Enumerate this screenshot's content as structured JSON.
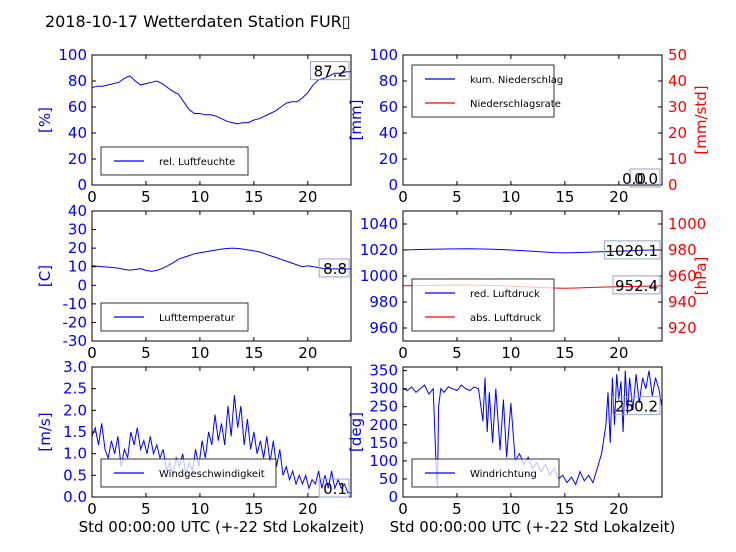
{
  "title": "2018-10-17 Wetterdaten Station FUR▯",
  "colors": {
    "primary": "#0000ff",
    "secondary": "#ff0000",
    "axis": "#000000"
  },
  "chart_data": [
    {
      "id": "humidity",
      "type": "line",
      "ylabel": "[%]",
      "xlim": [
        0,
        24
      ],
      "ylim": [
        0,
        100
      ],
      "xticks": [
        0,
        5,
        10,
        15,
        20
      ],
      "yticks": [
        0,
        20,
        40,
        60,
        80,
        100
      ],
      "last_value_label": "87.2",
      "legend": {
        "placement": "lower-left",
        "entries": [
          {
            "label": "rel. Luftfeuchte",
            "color": "#0000ff"
          }
        ]
      },
      "series": [
        {
          "name": "rel. Luftfeuchte",
          "color": "#0000ff",
          "x": [
            0,
            0.5,
            1,
            1.5,
            2,
            2.5,
            3,
            3.5,
            4,
            4.5,
            5,
            5.5,
            6,
            6.5,
            7,
            7.5,
            8,
            8.5,
            9,
            9.5,
            10,
            10.5,
            11,
            11.5,
            12,
            12.5,
            13,
            13.5,
            14,
            14.5,
            15,
            15.5,
            16,
            16.5,
            17,
            17.5,
            18,
            18.5,
            19,
            19.5,
            20,
            20.5,
            21,
            21.5,
            22,
            22.5,
            23,
            23.5,
            24
          ],
          "y": [
            75,
            76,
            76,
            77,
            78,
            79,
            82,
            84,
            80,
            77,
            78,
            79,
            80,
            78,
            75,
            72,
            70,
            64,
            58,
            55,
            55,
            54,
            54,
            53,
            51,
            49,
            48,
            47,
            48,
            48,
            50,
            51,
            53,
            55,
            57,
            60,
            63,
            64,
            64,
            67,
            71,
            77,
            81,
            82,
            84,
            86,
            86,
            87,
            87.2
          ]
        }
      ]
    },
    {
      "id": "precip",
      "type": "line",
      "ylabel": "[mm]",
      "ylabel_right": "[mm/std]",
      "xlim": [
        0,
        24
      ],
      "ylim": [
        0,
        100
      ],
      "ylim_right": [
        0,
        50
      ],
      "xticks": [
        0,
        5,
        10,
        15,
        20
      ],
      "yticks": [
        0,
        20,
        40,
        60,
        80,
        100
      ],
      "yticks_right": [
        0,
        10,
        20,
        30,
        40,
        50
      ],
      "last_value_label": "0.0",
      "last_value_label_overlap": "0.0",
      "legend": {
        "placement": "upper-left",
        "entries": [
          {
            "label": "kum. Niederschlag",
            "color": "#0000ff"
          },
          {
            "label": "Niederschlagsrate",
            "color": "#ff0000"
          }
        ]
      },
      "series": [
        {
          "name": "kum. Niederschlag",
          "color": "#0000ff",
          "axis": "left",
          "x": [
            0,
            24
          ],
          "y": [
            0,
            0
          ]
        },
        {
          "name": "Niederschlagsrate",
          "color": "#ff0000",
          "axis": "right",
          "x": [
            0,
            24
          ],
          "y": [
            0,
            0
          ]
        }
      ]
    },
    {
      "id": "temperature",
      "type": "line",
      "ylabel": "[C]",
      "xlim": [
        0,
        24
      ],
      "ylim": [
        -30,
        40
      ],
      "xticks": [
        0,
        5,
        10,
        15,
        20
      ],
      "yticks": [
        -30,
        -20,
        -10,
        0,
        10,
        20,
        30,
        40
      ],
      "last_value_label": "8.8",
      "legend": {
        "placement": "lower-left",
        "entries": [
          {
            "label": "Lufttemperatur",
            "color": "#0000ff"
          }
        ]
      },
      "series": [
        {
          "name": "Lufttemperatur",
          "color": "#0000ff",
          "x": [
            0,
            0.5,
            1,
            1.5,
            2,
            2.5,
            3,
            3.5,
            4,
            4.5,
            5,
            5.5,
            6,
            6.5,
            7,
            7.5,
            8,
            8.5,
            9,
            9.5,
            10,
            10.5,
            11,
            11.5,
            12,
            12.5,
            13,
            13.5,
            14,
            14.5,
            15,
            15.5,
            16,
            16.5,
            17,
            17.5,
            18,
            18.5,
            19,
            19.5,
            20,
            20.5,
            21,
            21.5,
            22,
            22.5,
            23,
            23.5,
            24
          ],
          "y": [
            10.5,
            10.3,
            10,
            9.8,
            9.5,
            9.2,
            8.5,
            8.2,
            8.5,
            9,
            8,
            7.5,
            8,
            9,
            10.5,
            12,
            14,
            15,
            16,
            17,
            17.5,
            18,
            18.5,
            19,
            19.5,
            19.8,
            20,
            19.8,
            19.5,
            19,
            18.5,
            18,
            17,
            16,
            15,
            14,
            13,
            12,
            11,
            10,
            10.5,
            10,
            9.5,
            9,
            8.8,
            8.8,
            8.8,
            8.8,
            8.8
          ]
        }
      ]
    },
    {
      "id": "pressure",
      "type": "line",
      "ylabel_right": "[hPa]",
      "xlim": [
        0,
        24
      ],
      "ylim": [
        950,
        1050
      ],
      "ylim_right": [
        910,
        1010
      ],
      "xticks": [
        0,
        5,
        10,
        15,
        20
      ],
      "yticks": [
        960,
        980,
        1000,
        1020,
        1040
      ],
      "yticks_right": [
        920,
        940,
        960,
        980,
        1000
      ],
      "last_value_label": "1020.1",
      "last_value_label_2": "952.4",
      "legend": {
        "placement": "lower-left",
        "entries": [
          {
            "label": "red. Luftdruck",
            "color": "#0000ff"
          },
          {
            "label": "abs. Luftdruck",
            "color": "#ff0000"
          }
        ]
      },
      "series": [
        {
          "name": "red. Luftdruck",
          "color": "#0000ff",
          "axis": "left",
          "x": [
            0,
            2,
            4,
            6,
            8,
            10,
            12,
            14,
            15,
            16,
            18,
            20,
            22,
            24
          ],
          "y": [
            1020,
            1020.5,
            1020.8,
            1021,
            1020.7,
            1020,
            1019,
            1018,
            1017.8,
            1018,
            1018.5,
            1019,
            1019.8,
            1020.1
          ]
        },
        {
          "name": "abs. Luftdruck",
          "color": "#ff0000",
          "axis": "right",
          "x": [
            0,
            2,
            4,
            6,
            8,
            10,
            12,
            14,
            15,
            16,
            18,
            20,
            22,
            24
          ],
          "y": [
            952.5,
            952.7,
            953,
            953.1,
            952.8,
            952.2,
            951.5,
            950.8,
            950.6,
            950.8,
            951.3,
            951.7,
            952.1,
            952.4
          ]
        }
      ]
    },
    {
      "id": "windspeed",
      "type": "line",
      "ylabel": "[m/s]",
      "xlabel": "Std 00:00:00 UTC (+-22 Std Lokalzeit)",
      "xlim": [
        0,
        24
      ],
      "ylim": [
        0,
        3.0
      ],
      "xticks": [
        0,
        5,
        10,
        15,
        20
      ],
      "yticks": [
        0.0,
        0.5,
        1.0,
        1.5,
        2.0,
        2.5,
        3.0
      ],
      "ytick_labels": [
        "0.0",
        "0.5",
        "1.0",
        "1.5",
        "2.0",
        "2.5",
        "3.0"
      ],
      "last_value_label": "0.1",
      "legend": {
        "placement": "lower-left",
        "entries": [
          {
            "label": "Windgeschwindigkeit",
            "color": "#0000ff"
          }
        ]
      },
      "series": [
        {
          "name": "Windgeschwindigkeit",
          "color": "#0000ff",
          "x": [
            0,
            0.3,
            0.6,
            0.9,
            1.2,
            1.5,
            1.8,
            2.1,
            2.4,
            2.7,
            3,
            3.3,
            3.6,
            3.9,
            4.2,
            4.5,
            4.8,
            5.1,
            5.4,
            5.7,
            6,
            6.3,
            6.6,
            6.9,
            7.2,
            7.5,
            7.8,
            8.1,
            8.4,
            8.7,
            9,
            9.3,
            9.6,
            9.9,
            10.2,
            10.5,
            10.8,
            11.1,
            11.4,
            11.7,
            12,
            12.3,
            12.6,
            12.9,
            13.2,
            13.5,
            13.8,
            14.1,
            14.4,
            14.7,
            15,
            15.3,
            15.6,
            15.9,
            16.2,
            16.5,
            16.8,
            17.1,
            17.4,
            17.7,
            18,
            18.3,
            18.6,
            18.9,
            19.2,
            19.5,
            19.8,
            20.1,
            20.4,
            20.7,
            21,
            21.3,
            21.6,
            21.9,
            22.2,
            22.5,
            22.8,
            23.1,
            23.4,
            23.7,
            24
          ],
          "y": [
            1.4,
            1.6,
            1.2,
            1.7,
            1.1,
            0.9,
            1.3,
            1.0,
            1.4,
            0.7,
            1.1,
            0.9,
            1.5,
            1.2,
            1.6,
            1.1,
            1.3,
            1.0,
            1.4,
            1.0,
            1.2,
            0.9,
            1.1,
            0.6,
            0.8,
            0.5,
            0.9,
            0.7,
            1.0,
            0.5,
            0.8,
            0.6,
            1.1,
            0.7,
            1.3,
            0.9,
            1.5,
            1.2,
            1.9,
            1.3,
            1.7,
            1.2,
            2.1,
            1.4,
            2.35,
            1.6,
            2.1,
            1.2,
            1.8,
            1.1,
            1.5,
            1.0,
            1.3,
            0.9,
            1.4,
            0.8,
            1.3,
            0.7,
            1.1,
            0.5,
            0.7,
            0.4,
            0.6,
            0.3,
            0.5,
            0.3,
            0.5,
            0.2,
            0.4,
            0.3,
            0.6,
            0.2,
            0.5,
            0.2,
            0.6,
            0.2,
            0.4,
            0.2,
            0.3,
            0.1,
            0.1
          ]
        }
      ]
    },
    {
      "id": "winddir",
      "type": "line",
      "ylabel": "[deg]",
      "xlabel": "Std 00:00:00 UTC (+-22 Std Lokalzeit)",
      "xlim": [
        0,
        24
      ],
      "ylim": [
        0,
        360
      ],
      "xticks": [
        0,
        5,
        10,
        15,
        20
      ],
      "yticks": [
        0,
        50,
        100,
        150,
        200,
        250,
        300,
        350
      ],
      "last_value_label": "250.2",
      "legend": {
        "placement": "lower-left",
        "entries": [
          {
            "label": "Windrichtung",
            "color": "#0000ff"
          }
        ]
      },
      "series": [
        {
          "name": "Windrichtung",
          "color": "#0000ff",
          "x": [
            0,
            0.4,
            0.8,
            1.2,
            1.6,
            2,
            2.4,
            2.8,
            3.1,
            3.2,
            3.3,
            3.5,
            3.8,
            4.2,
            4.6,
            5,
            5.4,
            5.8,
            6.2,
            6.6,
            7,
            7.4,
            7.6,
            7.8,
            8,
            8.3,
            8.6,
            9,
            9.3,
            9.6,
            10,
            10.4,
            10.8,
            11.2,
            11.6,
            12,
            12.4,
            12.8,
            13.2,
            13.6,
            14,
            14.4,
            14.8,
            15.2,
            15.6,
            16,
            16.4,
            16.8,
            17.2,
            17.6,
            18,
            18.4,
            18.8,
            19,
            19.2,
            19.4,
            19.6,
            19.8,
            20,
            20.2,
            20.4,
            20.6,
            20.8,
            21,
            21.3,
            21.6,
            21.9,
            22.2,
            22.5,
            22.8,
            23.1,
            23.4,
            23.7,
            24
          ],
          "y": [
            300,
            295,
            305,
            290,
            300,
            310,
            285,
            300,
            60,
            30,
            250,
            300,
            290,
            305,
            300,
            295,
            310,
            300,
            295,
            305,
            300,
            210,
            330,
            180,
            290,
            150,
            300,
            130,
            270,
            110,
            260,
            100,
            120,
            90,
            110,
            80,
            95,
            70,
            90,
            60,
            80,
            50,
            60,
            40,
            55,
            35,
            70,
            45,
            60,
            40,
            80,
            120,
            200,
            290,
            150,
            330,
            200,
            340,
            270,
            320,
            180,
            350,
            230,
            330,
            240,
            340,
            260,
            330,
            300,
            350,
            280,
            330,
            300,
            250.2
          ]
        }
      ]
    }
  ]
}
